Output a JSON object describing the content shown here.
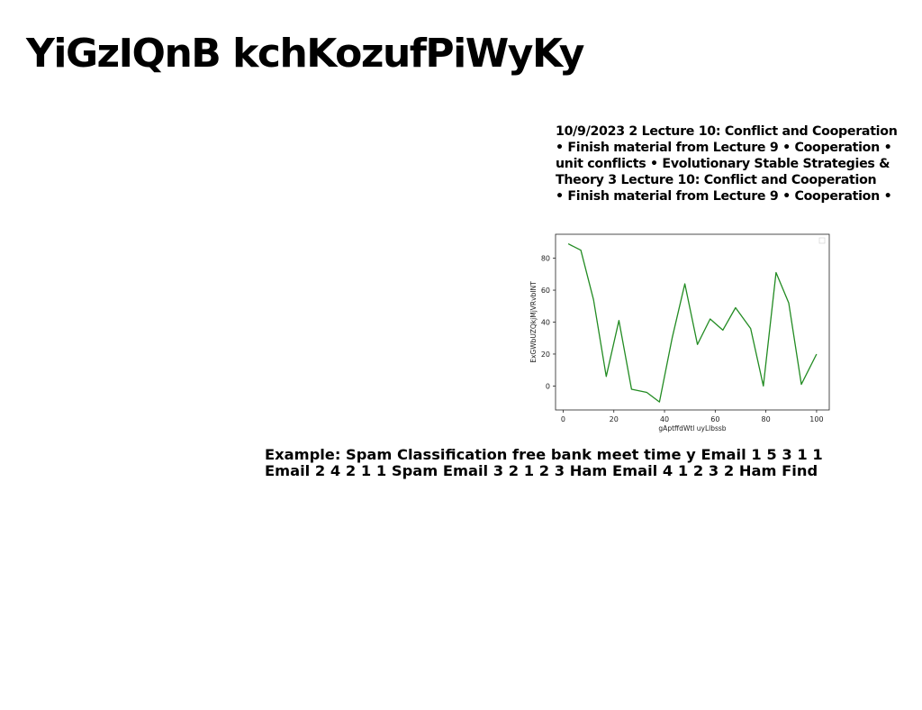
{
  "slide": {
    "title": "YiGzIQnB kchKozufPiWyKy",
    "lecture_lines": [
      "10/9/2023 2 Lecture 10: Conflict and Cooperation",
      "• Finish material from Lecture 9 • Cooperation •",
      "unit conflicts • Evolutionary Stable Strategies &",
      "Theory 3 Lecture 10: Conflict and Cooperation",
      "• Finish material from Lecture 9 • Cooperation •"
    ],
    "example_lines": [
      "Example: Spam Classification free bank meet time y Email 1 5 3 1 1",
      "Email 2 4 2 1 1 Spam Email 3 2 1 2 3 Ham Email 4 1 2 3 2 Ham Find"
    ]
  },
  "chart_data": {
    "type": "line",
    "title": "",
    "xlabel": "gAptffdWtl uyLlbssb",
    "ylabel": "ExGWbUZQkjMjVRvbINT",
    "xlim": [
      -3,
      105
    ],
    "ylim": [
      -15,
      95
    ],
    "x_ticks": [
      0,
      20,
      40,
      60,
      80,
      100
    ],
    "y_ticks": [
      0,
      20,
      40,
      60,
      80
    ],
    "grid": false,
    "legend": "top-right",
    "series": [
      {
        "color": "#228b22",
        "x": [
          2,
          7,
          12,
          17,
          22,
          27,
          33,
          38,
          43,
          48,
          53,
          58,
          63,
          68,
          74,
          79,
          84,
          89,
          94,
          100
        ],
        "values": [
          89,
          85,
          54,
          6,
          41,
          -2,
          -4,
          -10,
          30,
          64,
          26,
          42,
          35,
          49,
          36,
          0,
          71,
          52,
          1,
          20
        ]
      }
    ]
  }
}
